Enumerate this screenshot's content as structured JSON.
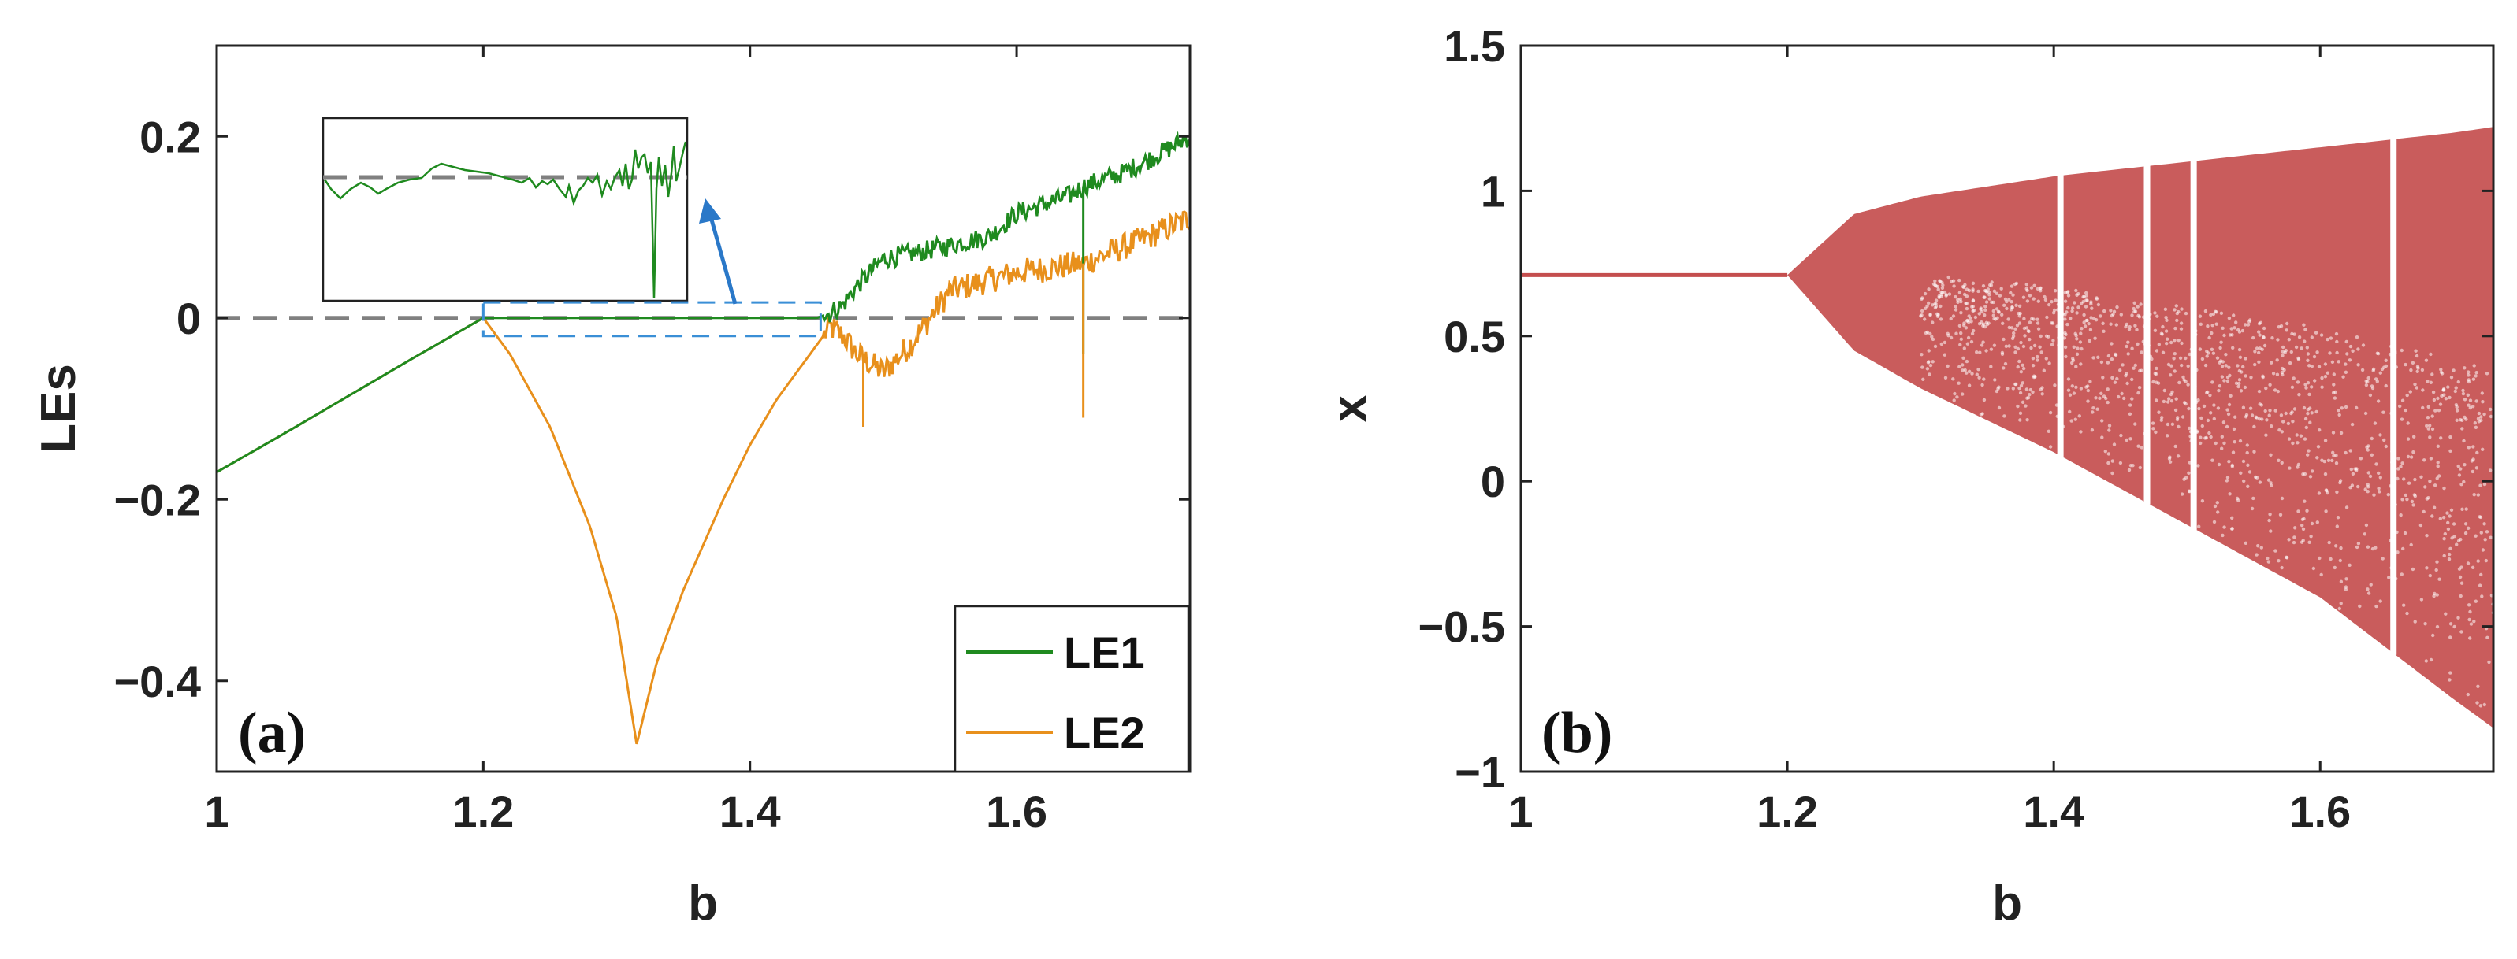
{
  "colors": {
    "le1": "#1f8a1f",
    "le2": "#e8901c",
    "bifurcation": "#c44e4e",
    "zero_line": "#808080",
    "highlight_box": "#3a8fd6",
    "arrow": "#2a78c8",
    "axis": "#222222"
  },
  "chart_data": [
    {
      "type": "line",
      "panel_label": "(a)",
      "xlabel": "b",
      "ylabel": "LEs",
      "xlim": [
        1.0,
        1.73
      ],
      "ylim": [
        -0.5,
        0.3
      ],
      "xticks": [
        1,
        1.2,
        1.4,
        1.6
      ],
      "xtick_labels": [
        "1",
        "1.2",
        "1.4",
        "1.6"
      ],
      "yticks": [
        0.2,
        0,
        -0.2,
        -0.4
      ],
      "ytick_labels": [
        "0.2",
        "0",
        "−0.2",
        "−0.4"
      ],
      "grid": false,
      "legend_position": "bottom-right",
      "reference_line": {
        "y": 0,
        "style": "dashed"
      },
      "highlight_region": {
        "x": [
          1.2,
          1.453
        ],
        "y": [
          -0.02,
          0.017
        ]
      },
      "inset": "zoom of the highlighted region around LE = 0, with dashed zero line",
      "series": [
        {
          "name": "LE1",
          "x": [
            1.0,
            1.05,
            1.1,
            1.15,
            1.2,
            1.25,
            1.3,
            1.35,
            1.4,
            1.45,
            1.46,
            1.47,
            1.48,
            1.49,
            1.5,
            1.52,
            1.55,
            1.58,
            1.6,
            1.62,
            1.64,
            1.65,
            1.66,
            1.68,
            1.7,
            1.73
          ],
          "y": [
            -0.17,
            -0.128,
            -0.085,
            -0.042,
            0.0,
            0.0,
            0.0,
            0.0,
            0.0,
            0.0,
            0.005,
            0.015,
            0.035,
            0.05,
            0.065,
            0.07,
            0.08,
            0.09,
            0.115,
            0.125,
            0.135,
            0.145,
            0.15,
            0.16,
            0.175,
            0.2
          ]
        },
        {
          "name": "LE2",
          "x": [
            1.0,
            1.05,
            1.1,
            1.15,
            1.2,
            1.22,
            1.25,
            1.28,
            1.3,
            1.315,
            1.33,
            1.35,
            1.38,
            1.4,
            1.42,
            1.44,
            1.46,
            1.47,
            1.48,
            1.5,
            1.52,
            1.55,
            1.6,
            1.65,
            1.7,
            1.73
          ],
          "y": [
            -0.17,
            -0.128,
            -0.085,
            -0.042,
            0.0,
            -0.04,
            -0.12,
            -0.23,
            -0.33,
            -0.47,
            -0.38,
            -0.3,
            -0.2,
            -0.14,
            -0.09,
            -0.05,
            -0.01,
            -0.02,
            -0.04,
            -0.06,
            -0.03,
            0.03,
            0.05,
            0.06,
            0.09,
            0.11
          ]
        }
      ],
      "dips": [
        {
          "series": "LE1",
          "x": 1.65,
          "y": -0.04
        },
        {
          "series": "LE2",
          "x": 1.65,
          "y": -0.11
        },
        {
          "series": "LE2",
          "x": 1.485,
          "y": -0.12
        }
      ]
    },
    {
      "type": "scatter",
      "panel_label": "(b)",
      "xlabel": "b",
      "ylabel": "x",
      "xlim": [
        1.0,
        1.73
      ],
      "ylim": [
        -1.0,
        1.5
      ],
      "xticks": [
        1,
        1.2,
        1.4,
        1.6
      ],
      "xtick_labels": [
        "1",
        "1.2",
        "1.4",
        "1.6"
      ],
      "yticks": [
        1.5,
        1,
        0.5,
        0,
        -0.5,
        -1
      ],
      "ytick_labels": [
        "1.5",
        "1",
        "0.5",
        "0",
        "−0.5",
        "−1"
      ],
      "grid": false,
      "fixed_point": {
        "x": [
          1.0,
          1.2
        ],
        "y": 0.71
      },
      "upper_envelope": {
        "x": [
          1.2,
          1.25,
          1.3,
          1.4,
          1.5,
          1.6,
          1.7,
          1.73
        ],
        "y": [
          0.71,
          0.92,
          0.98,
          1.05,
          1.1,
          1.15,
          1.2,
          1.22
        ]
      },
      "lower_envelope": {
        "x": [
          1.2,
          1.25,
          1.3,
          1.4,
          1.5,
          1.6,
          1.7,
          1.73
        ],
        "y": [
          0.71,
          0.45,
          0.32,
          0.1,
          -0.15,
          -0.4,
          -0.75,
          -0.85
        ]
      },
      "windows": [
        1.405,
        1.47,
        1.505,
        1.655
      ]
    }
  ]
}
